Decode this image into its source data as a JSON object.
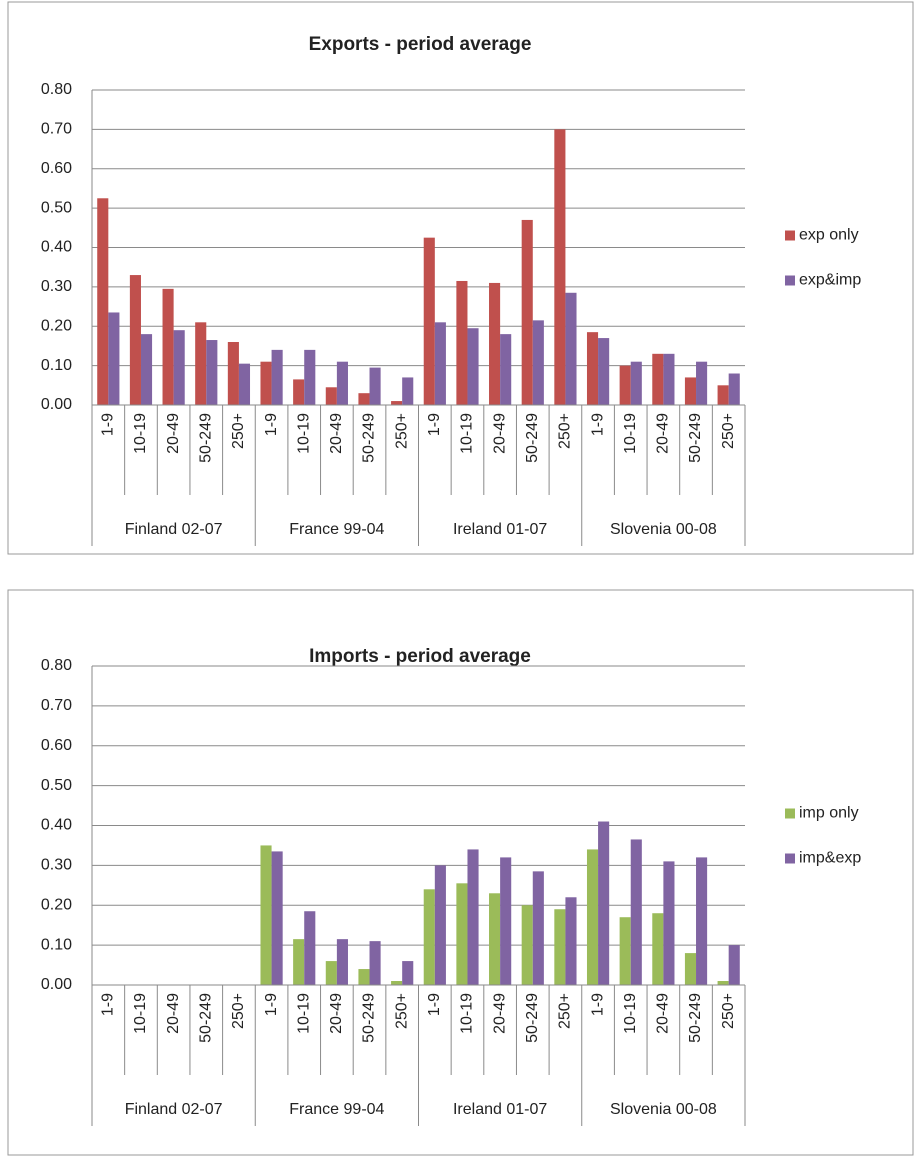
{
  "chart_data": [
    {
      "type": "bar",
      "title": "Exports - period average",
      "categories": [
        "1-9",
        "10-19",
        "20-49",
        "50-249",
        "250+",
        "1-9",
        "10-19",
        "20-49",
        "50-249",
        "250+",
        "1-9",
        "10-19",
        "20-49",
        "50-249",
        "250+",
        "1-9",
        "10-19",
        "20-49",
        "50-249",
        "250+"
      ],
      "groups": [
        "Finland 02-07",
        "France 99-04",
        "Ireland 01-07",
        "Slovenia 00-08"
      ],
      "series": [
        {
          "name": "exp only",
          "color": "#c0504d",
          "values": [
            0.525,
            0.33,
            0.295,
            0.21,
            0.16,
            0.11,
            0.065,
            0.045,
            0.03,
            0.01,
            0.425,
            0.315,
            0.31,
            0.47,
            0.7,
            0.185,
            0.1,
            0.13,
            0.07,
            0.05
          ]
        },
        {
          "name": "exp&imp",
          "color": "#8064a2",
          "values": [
            0.235,
            0.18,
            0.19,
            0.165,
            0.105,
            0.14,
            0.14,
            0.11,
            0.095,
            0.07,
            0.21,
            0.195,
            0.18,
            0.215,
            0.285,
            0.17,
            0.11,
            0.13,
            0.11,
            0.08
          ]
        }
      ],
      "ylim": [
        0,
        0.8
      ],
      "yticks": [
        {
          "value": 0,
          "label": "0.00"
        },
        {
          "value": 0.1,
          "label": "0.10"
        },
        {
          "value": 0.2,
          "label": "0.20"
        },
        {
          "value": 0.3,
          "label": "0.30"
        },
        {
          "value": 0.4,
          "label": "0.40"
        },
        {
          "value": 0.5,
          "label": "0.50"
        },
        {
          "value": 0.6,
          "label": "0.60"
        },
        {
          "value": 0.7,
          "label": "0.70"
        },
        {
          "value": 0.8,
          "label": "0.80"
        }
      ],
      "grid": true,
      "legend": "right"
    },
    {
      "type": "bar",
      "title": "Imports - period average",
      "categories": [
        "1-9",
        "10-19",
        "20-49",
        "50-249",
        "250+",
        "1-9",
        "10-19",
        "20-49",
        "50-249",
        "250+",
        "1-9",
        "10-19",
        "20-49",
        "50-249",
        "250+",
        "1-9",
        "10-19",
        "20-49",
        "50-249",
        "250+"
      ],
      "groups": [
        "Finland 02-07",
        "France 99-04",
        "Ireland 01-07",
        "Slovenia 00-08"
      ],
      "series": [
        {
          "name": "imp only",
          "color": "#9bbb59",
          "values": [
            null,
            null,
            null,
            null,
            null,
            0.35,
            0.115,
            0.06,
            0.04,
            0.01,
            0.24,
            0.255,
            0.23,
            0.2,
            0.19,
            0.34,
            0.17,
            0.18,
            0.08,
            0.01
          ]
        },
        {
          "name": "imp&exp",
          "color": "#8064a2",
          "values": [
            null,
            null,
            null,
            null,
            null,
            0.335,
            0.185,
            0.115,
            0.11,
            0.06,
            0.3,
            0.34,
            0.32,
            0.285,
            0.22,
            0.41,
            0.365,
            0.31,
            0.32,
            0.1
          ]
        }
      ],
      "ylim": [
        0,
        0.8
      ],
      "yticks": [
        {
          "value": 0,
          "label": "0.00"
        },
        {
          "value": 0.1,
          "label": "0.10"
        },
        {
          "value": 0.2,
          "label": "0.20"
        },
        {
          "value": 0.3,
          "label": "0.30"
        },
        {
          "value": 0.4,
          "label": "0.40"
        },
        {
          "value": 0.5,
          "label": "0.50"
        },
        {
          "value": 0.6,
          "label": "0.60"
        },
        {
          "value": 0.7,
          "label": "0.70"
        },
        {
          "value": 0.8,
          "label": "0.80"
        }
      ],
      "grid": true,
      "legend": "right"
    }
  ]
}
